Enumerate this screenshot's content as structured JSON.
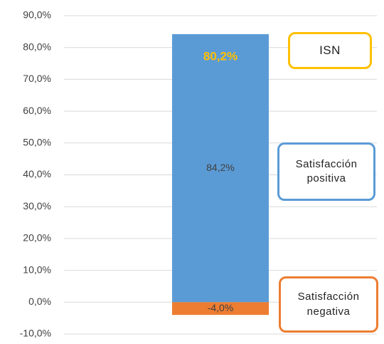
{
  "chart_data": {
    "type": "stacked_bar",
    "categories": [
      null
    ],
    "series": [
      {
        "name": "Satisfacción positiva",
        "color": "#5b9bd5",
        "values": [
          84.2
        ],
        "value_labels": [
          "84,2%"
        ]
      },
      {
        "name": "Satisfacción negativa",
        "color": "#ed7d31",
        "values": [
          -4.0
        ],
        "value_labels": [
          "-4,0%"
        ]
      }
    ],
    "annotations": [
      {
        "text": "ISN",
        "value": 80.2,
        "value_label": "80,2%",
        "color": "#ffc000"
      }
    ],
    "ylim": [
      -10,
      90
    ],
    "yticks": [
      {
        "value": -10,
        "label": "-10,0%"
      },
      {
        "value": 0,
        "label": "0,0%"
      },
      {
        "value": 10,
        "label": "10,0%"
      },
      {
        "value": 20,
        "label": "20,0%"
      },
      {
        "value": 30,
        "label": "30,0%"
      },
      {
        "value": 40,
        "label": "40,0%"
      },
      {
        "value": 50,
        "label": "50,0%"
      },
      {
        "value": 60,
        "label": "60,0%"
      },
      {
        "value": 70,
        "label": "70,0%"
      },
      {
        "value": 80,
        "label": "80,0%"
      },
      {
        "value": 90,
        "label": "90,0%"
      }
    ],
    "grid": true
  }
}
